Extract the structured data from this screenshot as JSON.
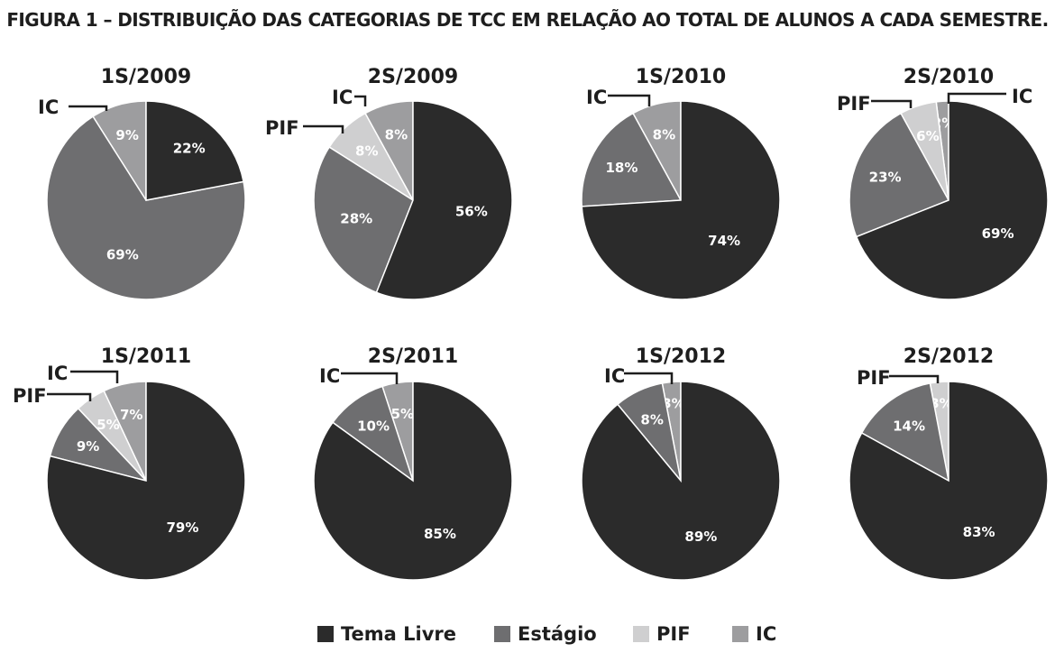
{
  "figure_title": "FIGURA 1 – DISTRIBUIÇÃO DAS CATEGORIAS DE TCC EM RELAÇÃO AO TOTAL DE ALUNOS A CADA SEMESTRE.",
  "colors": {
    "Tema Livre": "#2b2b2b",
    "Estágio": "#6e6e70",
    "PIF": "#cfcfd0",
    "IC": "#9d9d9f"
  },
  "legend": [
    {
      "label": "Tema Livre",
      "color": "#2b2b2b"
    },
    {
      "label": "Estágio",
      "color": "#6e6e70"
    },
    {
      "label": "PIF",
      "color": "#cfcfd0"
    },
    {
      "label": "IC",
      "color": "#9d9d9f"
    }
  ],
  "chart_data": [
    {
      "type": "pie",
      "title": "1S/2009",
      "slices": [
        {
          "name": "Tema Livre",
          "value": 22,
          "label": "22%"
        },
        {
          "name": "Estágio",
          "value": 69,
          "label": "69%"
        },
        {
          "name": "IC",
          "value": 9,
          "label": "9%"
        }
      ],
      "callouts": [
        "IC"
      ]
    },
    {
      "type": "pie",
      "title": "2S/2009",
      "slices": [
        {
          "name": "Tema Livre",
          "value": 56,
          "label": "56%"
        },
        {
          "name": "Estágio",
          "value": 28,
          "label": "28%"
        },
        {
          "name": "PIF",
          "value": 8,
          "label": "8%"
        },
        {
          "name": "IC",
          "value": 8,
          "label": "8%"
        }
      ],
      "callouts": [
        "IC",
        "PIF"
      ]
    },
    {
      "type": "pie",
      "title": "1S/2010",
      "slices": [
        {
          "name": "Tema Livre",
          "value": 74,
          "label": "74%"
        },
        {
          "name": "Estágio",
          "value": 18,
          "label": "18%"
        },
        {
          "name": "IC",
          "value": 8,
          "label": "8%"
        }
      ],
      "callouts": [
        "IC"
      ]
    },
    {
      "type": "pie",
      "title": "2S/2010",
      "slices": [
        {
          "name": "Tema Livre",
          "value": 69,
          "label": "69%"
        },
        {
          "name": "Estágio",
          "value": 23,
          "label": "23%"
        },
        {
          "name": "PIF",
          "value": 6,
          "label": "6%"
        },
        {
          "name": "IC",
          "value": 2,
          "label": "2%"
        }
      ],
      "callouts": [
        "PIF",
        "IC"
      ]
    },
    {
      "type": "pie",
      "title": "1S/2011",
      "slices": [
        {
          "name": "Tema Livre",
          "value": 79,
          "label": "79%"
        },
        {
          "name": "Estágio",
          "value": 9,
          "label": "9%"
        },
        {
          "name": "PIF",
          "value": 5,
          "label": "5%"
        },
        {
          "name": "IC",
          "value": 7,
          "label": "7%"
        }
      ],
      "callouts": [
        "IC",
        "PIF"
      ]
    },
    {
      "type": "pie",
      "title": "2S/2011",
      "slices": [
        {
          "name": "Tema Livre",
          "value": 85,
          "label": "85%"
        },
        {
          "name": "Estágio",
          "value": 10,
          "label": "10%"
        },
        {
          "name": "IC",
          "value": 5,
          "label": "5%"
        }
      ],
      "callouts": [
        "IC"
      ]
    },
    {
      "type": "pie",
      "title": "1S/2012",
      "slices": [
        {
          "name": "Tema Livre",
          "value": 89,
          "label": "89%"
        },
        {
          "name": "Estágio",
          "value": 8,
          "label": "8%"
        },
        {
          "name": "IC",
          "value": 3,
          "label": "3%"
        }
      ],
      "callouts": [
        "IC"
      ]
    },
    {
      "type": "pie",
      "title": "2S/2012",
      "slices": [
        {
          "name": "Tema Livre",
          "value": 83,
          "label": "83%"
        },
        {
          "name": "Estágio",
          "value": 14,
          "label": "14%"
        },
        {
          "name": "PIF",
          "value": 3,
          "label": "3%"
        }
      ],
      "callouts": [
        "PIF"
      ]
    }
  ]
}
